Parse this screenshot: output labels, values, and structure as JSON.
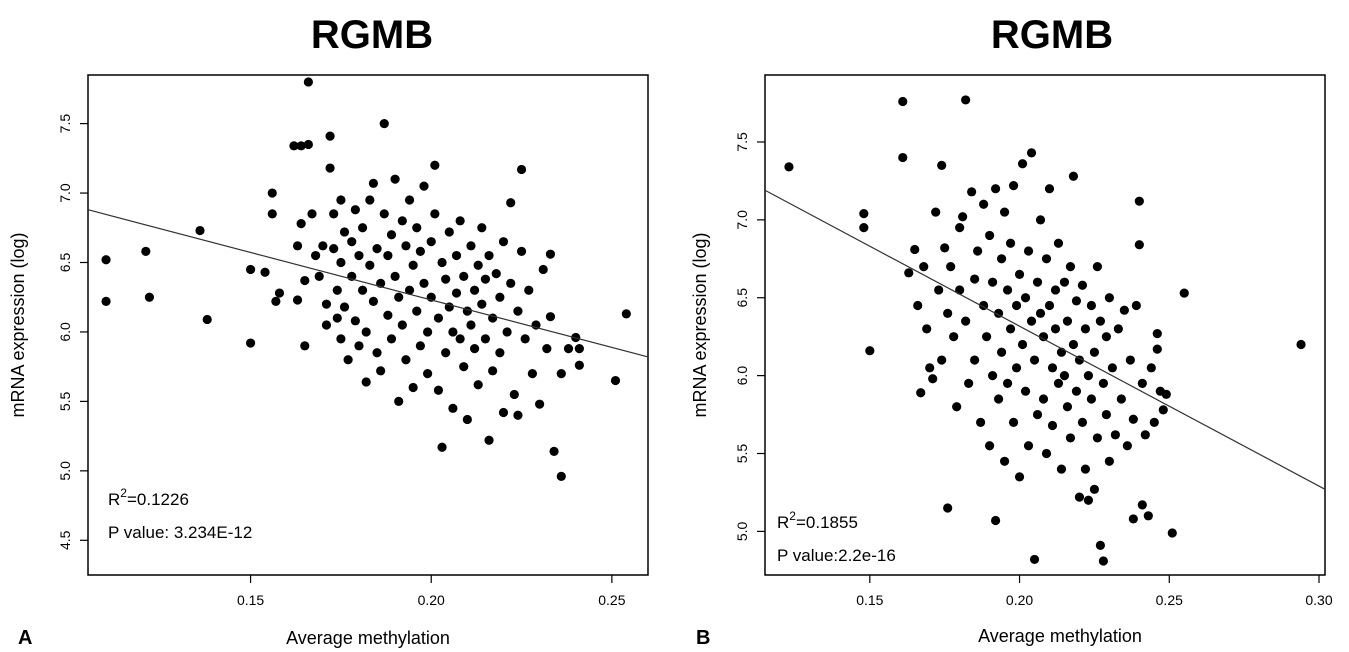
{
  "chart_data": [
    {
      "type": "scatter",
      "panel_label": "A",
      "title": "RGMB",
      "xlabel": "Average methylation",
      "ylabel": "mRNA expression (log)",
      "xlim": [
        0.105,
        0.26
      ],
      "ylim": [
        4.25,
        7.85
      ],
      "xticks": [
        0.15,
        0.2,
        0.25
      ],
      "xtick_labels": [
        "0.15",
        "0.20",
        "0.25"
      ],
      "yticks": [
        4.5,
        5.0,
        5.5,
        6.0,
        6.5,
        7.0,
        7.5
      ],
      "ytick_labels": [
        "4.5",
        "5.0",
        "5.5",
        "6.0",
        "6.5",
        "7.0",
        "7.5"
      ],
      "grid": false,
      "fit_line": {
        "x": [
          0.105,
          0.26
        ],
        "y": [
          6.88,
          5.82
        ]
      },
      "annotations": {
        "r2_label": "R",
        "r2_sup": "2",
        "r2_value": "=0.1226",
        "p_value": "P value: 3.234E-12"
      },
      "points": [
        [
          0.11,
          6.52
        ],
        [
          0.11,
          6.22
        ],
        [
          0.121,
          6.58
        ],
        [
          0.122,
          6.25
        ],
        [
          0.136,
          6.73
        ],
        [
          0.138,
          6.09
        ],
        [
          0.15,
          6.45
        ],
        [
          0.15,
          5.92
        ],
        [
          0.154,
          6.43
        ],
        [
          0.156,
          7.0
        ],
        [
          0.156,
          6.85
        ],
        [
          0.157,
          6.22
        ],
        [
          0.158,
          6.28
        ],
        [
          0.162,
          7.34
        ],
        [
          0.163,
          6.62
        ],
        [
          0.163,
          6.23
        ],
        [
          0.164,
          6.78
        ],
        [
          0.164,
          7.34
        ],
        [
          0.165,
          6.37
        ],
        [
          0.165,
          5.9
        ],
        [
          0.166,
          7.8
        ],
        [
          0.166,
          7.35
        ],
        [
          0.167,
          6.85
        ],
        [
          0.168,
          6.55
        ],
        [
          0.169,
          6.4
        ],
        [
          0.17,
          6.62
        ],
        [
          0.171,
          6.2
        ],
        [
          0.171,
          6.05
        ],
        [
          0.172,
          7.41
        ],
        [
          0.172,
          7.18
        ],
        [
          0.173,
          6.85
        ],
        [
          0.173,
          6.6
        ],
        [
          0.174,
          6.3
        ],
        [
          0.174,
          6.1
        ],
        [
          0.175,
          6.95
        ],
        [
          0.175,
          6.5
        ],
        [
          0.175,
          5.95
        ],
        [
          0.176,
          6.72
        ],
        [
          0.176,
          6.18
        ],
        [
          0.177,
          5.8
        ],
        [
          0.178,
          6.65
        ],
        [
          0.178,
          6.4
        ],
        [
          0.179,
          6.08
        ],
        [
          0.179,
          6.88
        ],
        [
          0.18,
          6.55
        ],
        [
          0.18,
          5.9
        ],
        [
          0.181,
          6.3
        ],
        [
          0.181,
          6.75
        ],
        [
          0.182,
          6.0
        ],
        [
          0.182,
          5.64
        ],
        [
          0.183,
          6.95
        ],
        [
          0.183,
          6.48
        ],
        [
          0.184,
          6.22
        ],
        [
          0.184,
          7.07
        ],
        [
          0.185,
          6.6
        ],
        [
          0.185,
          5.85
        ],
        [
          0.186,
          6.35
        ],
        [
          0.186,
          5.72
        ],
        [
          0.187,
          7.5
        ],
        [
          0.187,
          6.85
        ],
        [
          0.188,
          6.12
        ],
        [
          0.188,
          6.55
        ],
        [
          0.189,
          6.7
        ],
        [
          0.189,
          5.95
        ],
        [
          0.19,
          6.4
        ],
        [
          0.19,
          7.1
        ],
        [
          0.191,
          6.25
        ],
        [
          0.191,
          5.5
        ],
        [
          0.192,
          6.8
        ],
        [
          0.192,
          6.05
        ],
        [
          0.193,
          6.62
        ],
        [
          0.193,
          5.8
        ],
        [
          0.194,
          6.3
        ],
        [
          0.194,
          6.95
        ],
        [
          0.195,
          6.48
        ],
        [
          0.195,
          5.6
        ],
        [
          0.196,
          6.15
        ],
        [
          0.196,
          6.75
        ],
        [
          0.197,
          5.9
        ],
        [
          0.197,
          6.58
        ],
        [
          0.198,
          6.35
        ],
        [
          0.198,
          7.05
        ],
        [
          0.199,
          6.0
        ],
        [
          0.199,
          5.7
        ],
        [
          0.2,
          6.65
        ],
        [
          0.2,
          6.25
        ],
        [
          0.201,
          6.85
        ],
        [
          0.201,
          7.2
        ],
        [
          0.202,
          6.1
        ],
        [
          0.202,
          5.58
        ],
        [
          0.203,
          6.5
        ],
        [
          0.203,
          5.17
        ],
        [
          0.204,
          6.38
        ],
        [
          0.204,
          5.85
        ],
        [
          0.205,
          6.72
        ],
        [
          0.205,
          6.18
        ],
        [
          0.206,
          6.0
        ],
        [
          0.206,
          5.45
        ],
        [
          0.207,
          6.55
        ],
        [
          0.207,
          6.28
        ],
        [
          0.208,
          5.95
        ],
        [
          0.208,
          6.8
        ],
        [
          0.209,
          6.4
        ],
        [
          0.209,
          5.75
        ],
        [
          0.21,
          6.15
        ],
        [
          0.21,
          5.37
        ],
        [
          0.211,
          6.62
        ],
        [
          0.211,
          6.05
        ],
        [
          0.212,
          6.3
        ],
        [
          0.212,
          5.88
        ],
        [
          0.213,
          6.48
        ],
        [
          0.213,
          5.62
        ],
        [
          0.214,
          6.2
        ],
        [
          0.214,
          6.75
        ],
        [
          0.215,
          5.95
        ],
        [
          0.215,
          6.38
        ],
        [
          0.216,
          5.22
        ],
        [
          0.216,
          6.55
        ],
        [
          0.217,
          6.1
        ],
        [
          0.217,
          5.72
        ],
        [
          0.218,
          6.42
        ],
        [
          0.219,
          5.85
        ],
        [
          0.219,
          6.25
        ],
        [
          0.22,
          5.42
        ],
        [
          0.22,
          6.65
        ],
        [
          0.221,
          6.0
        ],
        [
          0.222,
          6.35
        ],
        [
          0.222,
          6.93
        ],
        [
          0.223,
          5.55
        ],
        [
          0.224,
          6.15
        ],
        [
          0.224,
          5.4
        ],
        [
          0.225,
          7.17
        ],
        [
          0.225,
          6.58
        ],
        [
          0.226,
          5.95
        ],
        [
          0.227,
          6.3
        ],
        [
          0.228,
          5.7
        ],
        [
          0.229,
          6.05
        ],
        [
          0.23,
          5.48
        ],
        [
          0.231,
          6.45
        ],
        [
          0.232,
          5.88
        ],
        [
          0.233,
          6.56
        ],
        [
          0.233,
          6.11
        ],
        [
          0.234,
          5.14
        ],
        [
          0.236,
          4.96
        ],
        [
          0.236,
          5.7
        ],
        [
          0.238,
          5.88
        ],
        [
          0.24,
          5.96
        ],
        [
          0.241,
          5.88
        ],
        [
          0.241,
          5.76
        ],
        [
          0.251,
          5.65
        ],
        [
          0.254,
          6.13
        ]
      ]
    },
    {
      "type": "scatter",
      "panel_label": "B",
      "title": "RGMB",
      "xlabel": "Average methylation",
      "ylabel": "mRNA expression (log)",
      "xlim": [
        0.115,
        0.302
      ],
      "ylim": [
        4.72,
        7.93
      ],
      "xticks": [
        0.15,
        0.2,
        0.25,
        0.3
      ],
      "xtick_labels": [
        "0.15",
        "0.20",
        "0.25",
        "0.30"
      ],
      "yticks": [
        5.0,
        5.5,
        6.0,
        6.5,
        7.0,
        7.5
      ],
      "ytick_labels": [
        "5.0",
        "5.5",
        "6.0",
        "6.5",
        "7.0",
        "7.5"
      ],
      "grid": false,
      "fit_line": {
        "x": [
          0.115,
          0.302
        ],
        "y": [
          7.19,
          5.27
        ]
      },
      "annotations": {
        "r2_label": "R",
        "r2_sup": "2",
        "r2_value": "=0.1855",
        "p_value": "P value:2.2e-16"
      },
      "points": [
        [
          0.123,
          7.34
        ],
        [
          0.148,
          7.04
        ],
        [
          0.148,
          6.95
        ],
        [
          0.15,
          6.16
        ],
        [
          0.161,
          7.76
        ],
        [
          0.161,
          7.4
        ],
        [
          0.163,
          6.66
        ],
        [
          0.165,
          6.81
        ],
        [
          0.166,
          6.45
        ],
        [
          0.167,
          5.89
        ],
        [
          0.168,
          6.7
        ],
        [
          0.169,
          6.3
        ],
        [
          0.17,
          6.05
        ],
        [
          0.171,
          5.98
        ],
        [
          0.172,
          7.05
        ],
        [
          0.173,
          6.55
        ],
        [
          0.174,
          7.35
        ],
        [
          0.174,
          6.1
        ],
        [
          0.175,
          6.82
        ],
        [
          0.176,
          5.15
        ],
        [
          0.176,
          6.4
        ],
        [
          0.177,
          6.7
        ],
        [
          0.178,
          6.25
        ],
        [
          0.179,
          5.8
        ],
        [
          0.18,
          6.95
        ],
        [
          0.18,
          6.55
        ],
        [
          0.181,
          7.02
        ],
        [
          0.182,
          7.77
        ],
        [
          0.182,
          6.35
        ],
        [
          0.183,
          5.95
        ],
        [
          0.184,
          7.18
        ],
        [
          0.185,
          6.62
        ],
        [
          0.185,
          6.1
        ],
        [
          0.186,
          6.8
        ],
        [
          0.187,
          5.7
        ],
        [
          0.188,
          6.45
        ],
        [
          0.188,
          7.1
        ],
        [
          0.189,
          6.25
        ],
        [
          0.19,
          6.9
        ],
        [
          0.19,
          5.55
        ],
        [
          0.191,
          6.6
        ],
        [
          0.191,
          6.0
        ],
        [
          0.192,
          5.07
        ],
        [
          0.192,
          7.2
        ],
        [
          0.193,
          6.4
        ],
        [
          0.193,
          5.85
        ],
        [
          0.194,
          6.75
        ],
        [
          0.194,
          6.15
        ],
        [
          0.195,
          5.45
        ],
        [
          0.195,
          7.05
        ],
        [
          0.196,
          6.55
        ],
        [
          0.196,
          5.95
        ],
        [
          0.197,
          6.3
        ],
        [
          0.197,
          6.85
        ],
        [
          0.198,
          5.7
        ],
        [
          0.198,
          7.22
        ],
        [
          0.199,
          6.45
        ],
        [
          0.199,
          6.05
        ],
        [
          0.2,
          6.65
        ],
        [
          0.2,
          5.35
        ],
        [
          0.201,
          6.2
        ],
        [
          0.201,
          7.36
        ],
        [
          0.202,
          5.9
        ],
        [
          0.202,
          6.5
        ],
        [
          0.203,
          6.8
        ],
        [
          0.203,
          5.55
        ],
        [
          0.204,
          6.35
        ],
        [
          0.204,
          7.43
        ],
        [
          0.205,
          4.82
        ],
        [
          0.205,
          6.1
        ],
        [
          0.206,
          6.6
        ],
        [
          0.206,
          5.75
        ],
        [
          0.207,
          6.4
        ],
        [
          0.207,
          7.0
        ],
        [
          0.208,
          5.85
        ],
        [
          0.208,
          6.25
        ],
        [
          0.209,
          6.75
        ],
        [
          0.209,
          5.5
        ],
        [
          0.21,
          6.45
        ],
        [
          0.21,
          7.2
        ],
        [
          0.211,
          6.05
        ],
        [
          0.211,
          5.68
        ],
        [
          0.212,
          6.55
        ],
        [
          0.212,
          6.3
        ],
        [
          0.213,
          5.95
        ],
        [
          0.213,
          6.85
        ],
        [
          0.214,
          6.15
        ],
        [
          0.214,
          5.4
        ],
        [
          0.215,
          6.6
        ],
        [
          0.215,
          6.0
        ],
        [
          0.216,
          5.8
        ],
        [
          0.216,
          6.35
        ],
        [
          0.217,
          6.7
        ],
        [
          0.217,
          5.6
        ],
        [
          0.218,
          6.2
        ],
        [
          0.218,
          7.28
        ],
        [
          0.219,
          5.9
        ],
        [
          0.219,
          6.48
        ],
        [
          0.22,
          5.22
        ],
        [
          0.22,
          6.1
        ],
        [
          0.221,
          6.58
        ],
        [
          0.221,
          5.7
        ],
        [
          0.222,
          6.3
        ],
        [
          0.222,
          5.4
        ],
        [
          0.223,
          6.0
        ],
        [
          0.223,
          5.2
        ],
        [
          0.224,
          6.45
        ],
        [
          0.224,
          5.85
        ],
        [
          0.225,
          6.15
        ],
        [
          0.225,
          5.27
        ],
        [
          0.226,
          6.7
        ],
        [
          0.226,
          5.6
        ],
        [
          0.227,
          6.35
        ],
        [
          0.227,
          4.91
        ],
        [
          0.228,
          4.81
        ],
        [
          0.228,
          5.95
        ],
        [
          0.229,
          6.25
        ],
        [
          0.229,
          5.75
        ],
        [
          0.23,
          6.5
        ],
        [
          0.23,
          5.45
        ],
        [
          0.231,
          6.05
        ],
        [
          0.232,
          5.62
        ],
        [
          0.233,
          6.3
        ],
        [
          0.234,
          5.85
        ],
        [
          0.235,
          6.42
        ],
        [
          0.236,
          5.55
        ],
        [
          0.237,
          6.1
        ],
        [
          0.238,
          5.08
        ],
        [
          0.238,
          5.72
        ],
        [
          0.239,
          6.45
        ],
        [
          0.24,
          6.84
        ],
        [
          0.24,
          7.12
        ],
        [
          0.241,
          5.95
        ],
        [
          0.241,
          5.17
        ],
        [
          0.242,
          5.62
        ],
        [
          0.243,
          5.1
        ],
        [
          0.244,
          6.05
        ],
        [
          0.245,
          5.7
        ],
        [
          0.246,
          6.27
        ],
        [
          0.246,
          6.17
        ],
        [
          0.247,
          5.9
        ],
        [
          0.248,
          5.78
        ],
        [
          0.249,
          5.88
        ],
        [
          0.251,
          4.99
        ],
        [
          0.255,
          6.53
        ],
        [
          0.294,
          6.2
        ]
      ]
    }
  ]
}
